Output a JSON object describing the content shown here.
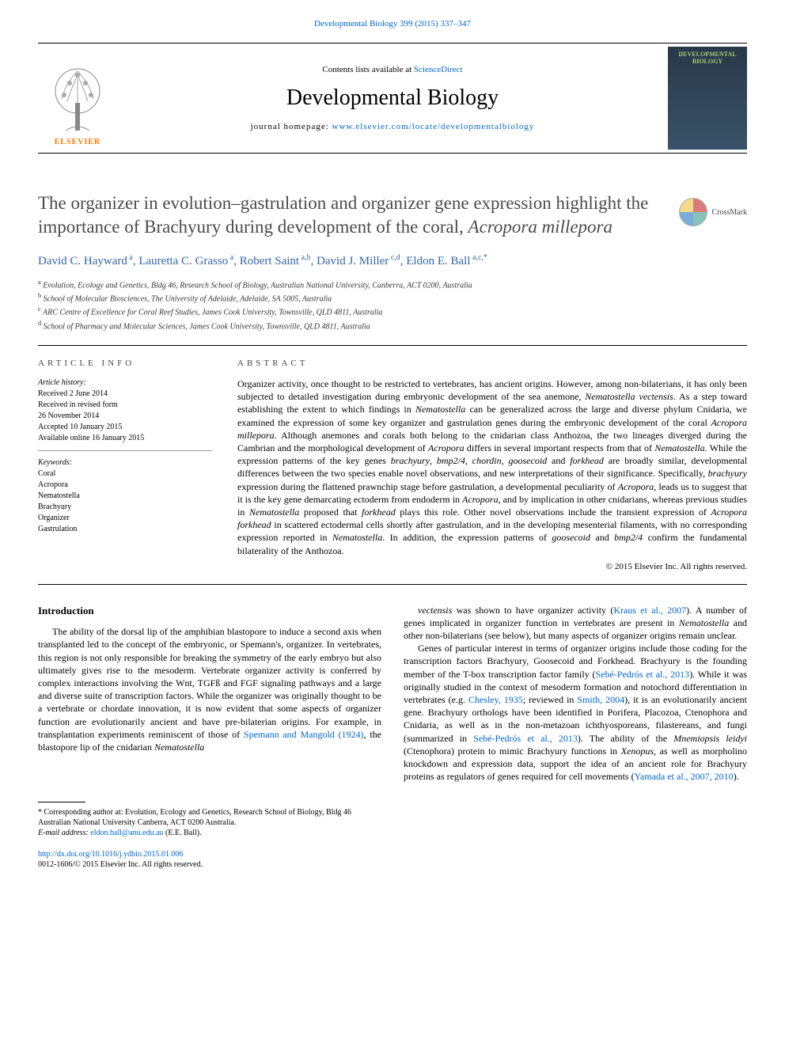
{
  "header": {
    "top_citation": "Developmental Biology 399 (2015) 337–347",
    "contents_prefix": "Contents lists available at ",
    "contents_link": "ScienceDirect",
    "journal_title": "Developmental Biology",
    "homepage_prefix": "journal homepage: ",
    "homepage_link": "www.elsevier.com/locate/developmentalbiology",
    "elsevier_label": "ELSEVIER",
    "cover_title": "DEVELOPMENTAL BIOLOGY"
  },
  "article": {
    "title_html": "The organizer in evolution–gastrulation and organizer gene expression highlight the importance of Brachyury during development of the coral, <em>Acropora millepora</em>",
    "crossmark": "CrossMark",
    "authors": [
      {
        "name": "David C. Hayward",
        "sup": "a"
      },
      {
        "name": "Lauretta C. Grasso",
        "sup": "a"
      },
      {
        "name": "Robert Saint",
        "sup": "a,b"
      },
      {
        "name": "David J. Miller",
        "sup": "c,d"
      },
      {
        "name": "Eldon E. Ball",
        "sup": "a,c,*"
      }
    ],
    "affiliations": [
      {
        "sup": "a",
        "text": "Evolution, Ecology and Genetics, Bldg 46, Research School of Biology, Australian National University, Canberra, ACT 0200, Australia"
      },
      {
        "sup": "b",
        "text": "School of Molecular Biosciences, The University of Adelaide, Adelaide, SA 5005, Australia"
      },
      {
        "sup": "c",
        "text": "ARC Centre of Excellence for Coral Reef Studies, James Cook University, Townsville, QLD 4811, Australia"
      },
      {
        "sup": "d",
        "text": "School of Pharmacy and Molecular Sciences, James Cook University, Townsville, QLD 4811, Australia"
      }
    ]
  },
  "info": {
    "label": "ARTICLE INFO",
    "history_label": "Article history:",
    "history": [
      "Received 2 June 2014",
      "Received in revised form",
      "26 November 2014",
      "Accepted 10 January 2015",
      "Available online 16 January 2015"
    ],
    "keywords_label": "Keywords:",
    "keywords": [
      "Coral",
      "Acropora",
      "Nematostella",
      "Brachyury",
      "Organizer",
      "Gastrulation"
    ]
  },
  "abstract": {
    "label": "ABSTRACT",
    "text_html": "Organizer activity, once thought to be restricted to vertebrates, has ancient origins. However, among non-bilaterians, it has only been subjected to detailed investigation during embryonic development of the sea anemone, <em>Nematostella vectensis</em>. As a step toward establishing the extent to which findings in <em>Nematostella</em> can be generalized across the large and diverse phylum Cnidaria, we examined the expression of some key organizer and gastrulation genes during the embryonic development of the coral <em>Acropora millepora</em>. Although anemones and corals both belong to the cnidarian class Anthozoa, the two lineages diverged during the Cambrian and the morphological development of <em>Acropora</em> differs in several important respects from that of <em>Nematostella</em>. While the expression patterns of the key genes <em>brachyury</em>, <em>bmp2/4</em>, <em>chordin</em>, <em>goosecoid</em> and <em>forkhead</em> are broadly similar, developmental differences between the two species enable novel observations, and new interpretations of their significance. Specifically, <em>brachyury</em> expression during the flattened prawnchip stage before gastrulation, a developmental peculiarity of <em>Acropora</em>, leads us to suggest that it is the key gene demarcating ectoderm from endoderm in <em>Acropora</em>, and by implication in other cnidarians, whereas previous studies in <em>Nematostella</em> proposed that <em>forkhead</em> plays this role. Other novel observations include the transient expression of <em>Acropora forkhead</em> in scattered ectodermal cells shortly after gastrulation, and in the developing mesenterial filaments, with no corresponding expression reported in <em>Nematostella</em>. In addition, the expression patterns of <em>goosecoid</em> and <em>bmp2/4</em> confirm the fundamental bilaterality of the Anthozoa.",
    "copyright": "© 2015 Elsevier Inc. All rights reserved."
  },
  "body": {
    "intro_heading": "Introduction",
    "col1_html": "The ability of the dorsal lip of the amphibian blastopore to induce a second axis when transplanted led to the concept of the embryonic, or Spemann's, organizer. In vertebrates, this region is not only responsible for breaking the symmetry of the early embryo but also ultimately gives rise to the mesoderm. Vertebrate organizer activity is conferred by complex interactions involving the Wnt, TGFß and FGF signaling pathways and a large and diverse suite of transcription factors. While the organizer was originally thought to be a vertebrate or chordate innovation, it is now evident that some aspects of organizer function are evolutionarily ancient and have pre-bilaterian origins. For example, in transplantation experiments reminiscent of those of <a href='#'>Spemann and Mangold (1924)</a>, the blastopore lip of the cnidarian <em>Nematostella</em>",
    "col2_html": "<em>vectensis</em> was shown to have organizer activity (<a href='#'>Kraus et al., 2007</a>). A number of genes implicated in organizer function in vertebrates are present in <em>Nematostella</em> and other non-bilaterians (see below), but many aspects of organizer origins remain unclear.</p><p>Genes of particular interest in terms of organizer origins include those coding for the transcription factors Brachyury, Goosecoid and Forkhead. Brachyury is the founding member of the T-box transcription factor family (<a href='#'>Sebé-Pedrós et al., 2013</a>). While it was originally studied in the context of mesoderm formation and notochord differentiation in vertebrates (e.g. <a href='#'>Chesley, 1935</a>; reviewed in <a href='#'>Smith, 2004</a>), it is an evolutionarily ancient gene. Brachyury orthologs have been identified in Porifera, Placozoa, Ctenophora and Cnidaria, as well as in the non-metazoan ichthyosporeans, filastereans, and fungi (summarized in <a href='#'>Sebé-Pedrós et al., 2013</a>). The ability of the <em>Mnemiopsis leidyi</em> (Ctenophora) protein to mimic Brachyury functions in <em>Xenopus</em>, as well as morpholino knockdown and expression data, support the idea of an ancient role for Brachyury proteins as regulators of genes required for cell movements (<a href='#'>Yamada et al., 2007, 2010</a>)."
  },
  "footnotes": {
    "corresponding": "* Corresponding author at: Evolution, Ecology and Genetics, Research School of Biology, Bldg 46 Australian National University Canberra, ACT 0200 Australia.",
    "email_label": "E-mail address: ",
    "email": "eldon.ball@anu.edu.au",
    "email_suffix": " (E.E. Ball)."
  },
  "footer": {
    "doi": "http://dx.doi.org/10.1016/j.ydbio.2015.01.006",
    "issn_line": "0012-1606/© 2015 Elsevier Inc. All rights reserved."
  },
  "colors": {
    "link": "#0066cc",
    "elsevier_orange": "#ff7800",
    "author_blue": "#3366aa",
    "title_gray": "#4a4a4a"
  },
  "typography": {
    "body_fontsize": 13,
    "title_fontsize": 23,
    "journal_title_fontsize": 28,
    "abstract_fontsize": 12,
    "small_fontsize": 10
  }
}
